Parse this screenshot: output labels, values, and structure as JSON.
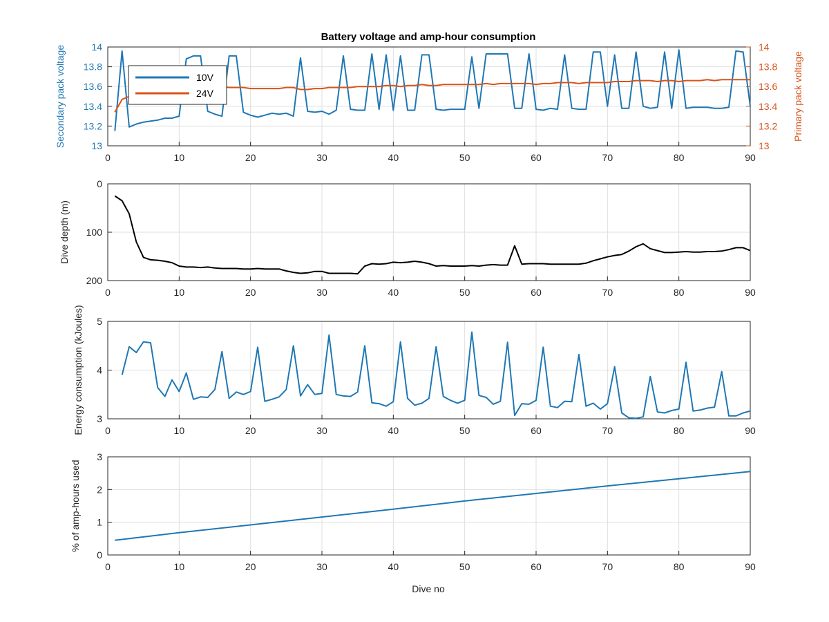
{
  "figure": {
    "title": "Battery voltage and amp-hour consumption",
    "xlabel": "Dive no",
    "colors": {
      "blue": "#1f77b4",
      "orange": "#d95319",
      "black": "#000000",
      "grid": "#dfdfdf",
      "axis_text": "#262626"
    }
  },
  "chart_data": [
    {
      "type": "line",
      "title": "Battery voltage and amp-hour consumption",
      "xlabel": "",
      "ylabel": "Secondary pack voltage",
      "y2label": "Primary pack voltage",
      "xlim": [
        0,
        90
      ],
      "ylim": [
        13,
        14
      ],
      "y2lim": [
        13,
        14
      ],
      "xticks": [
        0,
        10,
        20,
        30,
        40,
        50,
        60,
        70,
        80,
        90
      ],
      "yticks": [
        13,
        13.2,
        13.4,
        13.6,
        13.8,
        14
      ],
      "y2ticks": [
        13,
        13.2,
        13.4,
        13.6,
        13.8,
        14
      ],
      "grid": true,
      "legend": "top-left",
      "series": [
        {
          "name": "10V",
          "axis": "left",
          "color": "#1f77b4",
          "x": [
            1,
            2,
            3,
            4,
            5,
            6,
            7,
            8,
            9,
            10,
            11,
            12,
            13,
            14,
            15,
            16,
            17,
            18,
            19,
            20,
            21,
            22,
            23,
            24,
            25,
            26,
            27,
            28,
            29,
            30,
            31,
            32,
            33,
            34,
            35,
            36,
            37,
            38,
            39,
            40,
            41,
            42,
            43,
            44,
            45,
            46,
            47,
            48,
            49,
            50,
            51,
            52,
            53,
            54,
            55,
            56,
            57,
            58,
            59,
            60,
            61,
            62,
            63,
            64,
            65,
            66,
            67,
            68,
            69,
            70,
            71,
            72,
            73,
            74,
            75,
            76,
            77,
            78,
            79,
            80,
            81,
            82,
            83,
            84,
            85,
            86,
            87,
            88,
            89,
            90
          ],
          "y": [
            13.15,
            13.96,
            13.19,
            13.22,
            13.24,
            13.25,
            13.26,
            13.28,
            13.28,
            13.3,
            13.88,
            13.91,
            13.91,
            13.35,
            13.32,
            13.3,
            13.91,
            13.91,
            13.34,
            13.31,
            13.29,
            13.31,
            13.33,
            13.32,
            13.33,
            13.3,
            13.89,
            13.35,
            13.34,
            13.35,
            13.32,
            13.36,
            13.91,
            13.37,
            13.36,
            13.36,
            13.93,
            13.37,
            13.92,
            13.36,
            13.91,
            13.36,
            13.36,
            13.92,
            13.92,
            13.37,
            13.36,
            13.37,
            13.37,
            13.37,
            13.9,
            13.38,
            13.93,
            13.93,
            13.93,
            13.93,
            13.38,
            13.38,
            13.93,
            13.37,
            13.36,
            13.38,
            13.37,
            13.92,
            13.38,
            13.37,
            13.37,
            13.95,
            13.95,
            13.4,
            13.92,
            13.38,
            13.38,
            13.95,
            13.4,
            13.38,
            13.39,
            13.95,
            13.38,
            13.97,
            13.38,
            13.39,
            13.39,
            13.39,
            13.38,
            13.38,
            13.39,
            13.96,
            13.95,
            13.4
          ]
        },
        {
          "name": "24V",
          "axis": "right",
          "color": "#d95319",
          "x": [
            1,
            2,
            3,
            4,
            5,
            6,
            7,
            8,
            9,
            10,
            11,
            12,
            13,
            14,
            15,
            16,
            17,
            18,
            19,
            20,
            21,
            22,
            23,
            24,
            25,
            26,
            27,
            28,
            29,
            30,
            31,
            32,
            33,
            34,
            35,
            36,
            37,
            38,
            39,
            40,
            41,
            42,
            43,
            44,
            45,
            46,
            47,
            48,
            49,
            50,
            51,
            52,
            53,
            54,
            55,
            56,
            57,
            58,
            59,
            60,
            61,
            62,
            63,
            64,
            65,
            66,
            67,
            68,
            69,
            70,
            71,
            72,
            73,
            74,
            75,
            76,
            77,
            78,
            79,
            80,
            81,
            82,
            83,
            84,
            85,
            86,
            87,
            88,
            89,
            90
          ],
          "y": [
            13.34,
            13.47,
            13.5,
            13.53,
            13.54,
            13.55,
            13.56,
            13.56,
            13.57,
            13.57,
            13.58,
            13.58,
            13.59,
            13.59,
            13.6,
            13.6,
            13.59,
            13.59,
            13.59,
            13.58,
            13.58,
            13.58,
            13.58,
            13.58,
            13.59,
            13.59,
            13.57,
            13.57,
            13.58,
            13.58,
            13.59,
            13.59,
            13.59,
            13.59,
            13.6,
            13.6,
            13.6,
            13.6,
            13.61,
            13.61,
            13.6,
            13.61,
            13.61,
            13.62,
            13.61,
            13.61,
            13.62,
            13.62,
            13.62,
            13.62,
            13.62,
            13.62,
            13.63,
            13.62,
            13.63,
            13.63,
            13.63,
            13.63,
            13.63,
            13.62,
            13.63,
            13.63,
            13.64,
            13.64,
            13.64,
            13.63,
            13.64,
            13.64,
            13.64,
            13.64,
            13.65,
            13.65,
            13.65,
            13.66,
            13.66,
            13.66,
            13.65,
            13.66,
            13.66,
            13.65,
            13.66,
            13.66,
            13.66,
            13.67,
            13.66,
            13.67,
            13.67,
            13.67,
            13.67,
            13.67
          ]
        }
      ]
    },
    {
      "type": "line",
      "title": "",
      "xlabel": "",
      "ylabel": "Dive depth (m)",
      "xlim": [
        0,
        90
      ],
      "ylim": [
        0,
        200
      ],
      "y_reversed": true,
      "xticks": [
        0,
        10,
        20,
        30,
        40,
        50,
        60,
        70,
        80,
        90
      ],
      "yticks": [
        0,
        100,
        200
      ],
      "grid": true,
      "series": [
        {
          "color": "#000000",
          "x": [
            1,
            2,
            3,
            4,
            5,
            6,
            7,
            8,
            9,
            10,
            11,
            12,
            13,
            14,
            15,
            16,
            17,
            18,
            19,
            20,
            21,
            22,
            23,
            24,
            25,
            26,
            27,
            28,
            29,
            30,
            31,
            32,
            33,
            34,
            35,
            36,
            37,
            38,
            39,
            40,
            41,
            42,
            43,
            44,
            45,
            46,
            47,
            48,
            49,
            50,
            51,
            52,
            53,
            54,
            55,
            56,
            57,
            58,
            59,
            60,
            61,
            62,
            63,
            64,
            65,
            66,
            67,
            68,
            69,
            70,
            71,
            72,
            73,
            74,
            75,
            76,
            77,
            78,
            79,
            80,
            81,
            82,
            83,
            84,
            85,
            86,
            87,
            88,
            89,
            90
          ],
          "y": [
            25,
            35,
            62,
            120,
            152,
            157,
            158,
            160,
            163,
            170,
            172,
            172,
            173,
            172,
            174,
            175,
            175,
            175,
            176,
            176,
            175,
            176,
            176,
            176,
            180,
            183,
            185,
            184,
            181,
            181,
            185,
            185,
            185,
            185,
            186,
            170,
            165,
            166,
            165,
            162,
            163,
            162,
            160,
            162,
            165,
            170,
            169,
            170,
            170,
            170,
            169,
            170,
            168,
            167,
            168,
            168,
            128,
            166,
            165,
            165,
            165,
            166,
            166,
            166,
            166,
            166,
            164,
            159,
            155,
            151,
            148,
            146,
            139,
            130,
            124,
            134,
            138,
            142,
            142,
            141,
            140,
            141,
            141,
            140,
            140,
            139,
            136,
            132,
            132,
            138
          ]
        }
      ]
    },
    {
      "type": "line",
      "title": "",
      "xlabel": "",
      "ylabel": "Energy consumption (kJoules)",
      "xlim": [
        0,
        90
      ],
      "ylim": [
        3,
        5
      ],
      "xticks": [
        0,
        10,
        20,
        30,
        40,
        50,
        60,
        70,
        80,
        90
      ],
      "yticks": [
        3,
        4,
        5
      ],
      "grid": true,
      "series": [
        {
          "color": "#1f77b4",
          "x": [
            2,
            3,
            4,
            5,
            6,
            7,
            8,
            9,
            10,
            11,
            12,
            13,
            14,
            15,
            16,
            17,
            18,
            19,
            20,
            21,
            22,
            23,
            24,
            25,
            26,
            27,
            28,
            29,
            30,
            31,
            32,
            33,
            34,
            35,
            36,
            37,
            38,
            39,
            40,
            41,
            42,
            43,
            44,
            45,
            46,
            47,
            48,
            49,
            50,
            51,
            52,
            53,
            54,
            55,
            56,
            57,
            58,
            59,
            60,
            61,
            62,
            63,
            64,
            65,
            66,
            67,
            68,
            69,
            70,
            71,
            72,
            73,
            74,
            75,
            76,
            77,
            78,
            79,
            80,
            81,
            82,
            83,
            84,
            85,
            86,
            87,
            88,
            89,
            90
          ],
          "y": [
            3.9,
            4.48,
            4.36,
            4.58,
            4.56,
            3.64,
            3.46,
            3.8,
            3.56,
            3.94,
            3.4,
            3.45,
            3.44,
            3.6,
            4.38,
            3.42,
            3.55,
            3.5,
            3.56,
            4.47,
            3.36,
            3.4,
            3.45,
            3.6,
            4.5,
            3.47,
            3.7,
            3.5,
            3.52,
            4.72,
            3.5,
            3.47,
            3.46,
            3.55,
            4.5,
            3.33,
            3.31,
            3.26,
            3.35,
            4.58,
            3.42,
            3.28,
            3.32,
            3.42,
            4.48,
            3.46,
            3.38,
            3.32,
            3.38,
            4.78,
            3.48,
            3.44,
            3.3,
            3.36,
            4.57,
            3.07,
            3.31,
            3.3,
            3.38,
            4.47,
            3.26,
            3.23,
            3.36,
            3.35,
            4.32,
            3.26,
            3.32,
            3.2,
            3.31,
            4.07,
            3.12,
            3.02,
            3.01,
            3.04,
            3.87,
            3.14,
            3.12,
            3.17,
            3.2,
            4.16,
            3.16,
            3.18,
            3.22,
            3.24,
            3.97,
            3.06,
            3.06,
            3.12,
            3.16
          ]
        }
      ]
    },
    {
      "type": "line",
      "title": "",
      "xlabel": "Dive no",
      "ylabel": "% of amp-hours used",
      "xlim": [
        0,
        90
      ],
      "ylim": [
        0,
        3
      ],
      "xticks": [
        0,
        10,
        20,
        30,
        40,
        50,
        60,
        70,
        80,
        90
      ],
      "yticks": [
        0,
        1,
        2,
        3
      ],
      "grid": true,
      "series": [
        {
          "color": "#1f77b4",
          "x": [
            1,
            10,
            20,
            30,
            40,
            50,
            60,
            70,
            80,
            90
          ],
          "y": [
            0.45,
            0.68,
            0.92,
            1.16,
            1.4,
            1.65,
            1.88,
            2.11,
            2.33,
            2.55
          ]
        }
      ]
    }
  ]
}
